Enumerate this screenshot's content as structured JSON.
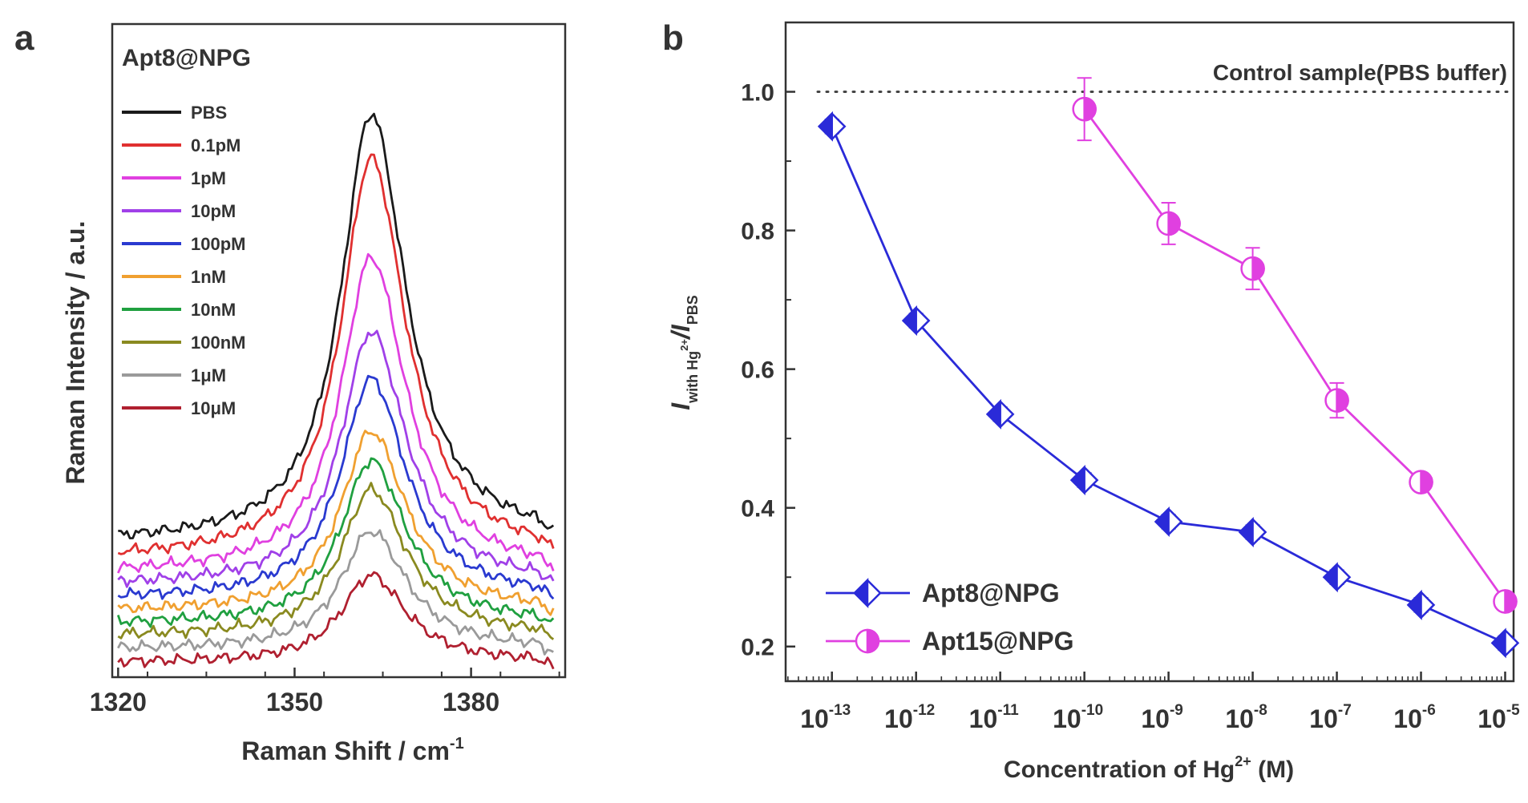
{
  "chart_data": [
    {
      "panel_label": "a",
      "type": "line",
      "title": "Apt8@NPG",
      "xlabel": "Raman Shift / cm",
      "xlabel_superscript": "-1",
      "ylabel": "Raman Intensity / a.u.",
      "xlim": [
        1319,
        1396
      ],
      "ylim": [
        0,
        11
      ],
      "xticks": [
        1320,
        1350,
        1380
      ],
      "peak_center": 1363,
      "series": [
        {
          "name": "PBS",
          "color": "#1a1a1a",
          "baseline": 2.5,
          "peak_height": 7.6
        },
        {
          "name": "0.1pM",
          "color": "#e03030",
          "baseline": 2.2,
          "peak_height": 7.1
        },
        {
          "name": "1pM",
          "color": "#e040e0",
          "baseline": 1.9,
          "peak_height": 5.6
        },
        {
          "name": "10pM",
          "color": "#a040e8",
          "baseline": 1.65,
          "peak_height": 4.5
        },
        {
          "name": "100pM",
          "color": "#2a3ad0",
          "baseline": 1.4,
          "peak_height": 3.9
        },
        {
          "name": "1nM",
          "color": "#f0a030",
          "baseline": 1.15,
          "peak_height": 3.2
        },
        {
          "name": "10nM",
          "color": "#20a040",
          "baseline": 0.92,
          "peak_height": 2.9
        },
        {
          "name": "100nM",
          "color": "#8a8a20",
          "baseline": 0.7,
          "peak_height": 2.6
        },
        {
          "name": "1μM",
          "color": "#9a9a9a",
          "baseline": 0.45,
          "peak_height": 2.1
        },
        {
          "name": "10μM",
          "color": "#b02030",
          "baseline": 0.2,
          "peak_height": 1.55
        }
      ]
    },
    {
      "panel_label": "b",
      "type": "line",
      "xlabel": "Concentration of Hg",
      "xlabel_superscript": "2+",
      "xlabel_suffix": " (M)",
      "ylabel_main": "I",
      "ylabel_sub": "with Hg",
      "ylabel_sub_sup": "2+",
      "ylabel_sep": "/I",
      "ylabel_sub2": "PBS",
      "xscale": "log",
      "xlim": [
        -13.55,
        -4.9
      ],
      "ylim": [
        0.15,
        1.1
      ],
      "yticks": [
        0.2,
        0.4,
        0.6,
        0.8,
        1.0
      ],
      "ytick_labels": [
        "0.2",
        "0.4",
        "0.6",
        "0.8",
        "1.0"
      ],
      "xtick_exponents": [
        -13,
        -12,
        -11,
        -10,
        -9,
        -8,
        -7,
        -6,
        -5
      ],
      "xtick_base": "10",
      "reference_line": {
        "y": 1.0,
        "label": "Control sample(PBS buffer)"
      },
      "legend_position": "bottom-left",
      "series": [
        {
          "name": "Apt8@NPG",
          "color": "#2a2ad8",
          "marker": "diamond-half",
          "x_exp": [
            -13,
            -12,
            -11,
            -10,
            -9,
            -8,
            -7,
            -6,
            -5
          ],
          "values": [
            0.95,
            0.67,
            0.535,
            0.44,
            0.38,
            0.365,
            0.3,
            0.26,
            0.205
          ],
          "errors": [
            0.01,
            0.01,
            0.01,
            0.01,
            0.01,
            0.01,
            0.01,
            0.01,
            0.01
          ]
        },
        {
          "name": "Apt15@NPG",
          "color": "#e040e0",
          "marker": "circle-half",
          "x_exp": [
            -10,
            -9,
            -8,
            -7,
            -6,
            -5
          ],
          "values": [
            0.975,
            0.81,
            0.745,
            0.555,
            0.437,
            0.265
          ],
          "errors": [
            0.045,
            0.03,
            0.03,
            0.025,
            0.012,
            0.01
          ]
        }
      ]
    }
  ]
}
